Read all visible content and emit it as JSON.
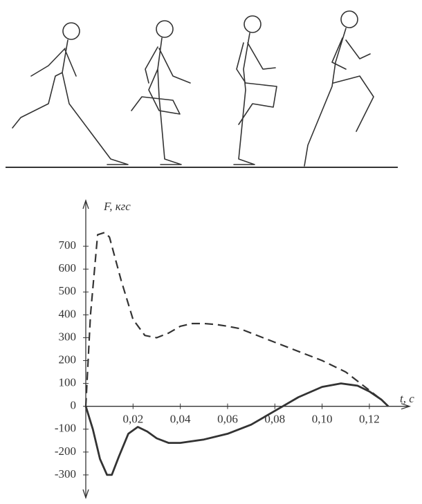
{
  "chart_data": {
    "type": "line",
    "y_label": "F, кгс",
    "x_label": "t, с",
    "xlim": [
      0,
      0.137
    ],
    "ylim": [
      -400,
      900
    ],
    "xticks": [
      {
        "value": 0.02,
        "label": "0,02"
      },
      {
        "value": 0.04,
        "label": "0,04"
      },
      {
        "value": 0.06,
        "label": "0,06"
      },
      {
        "value": 0.08,
        "label": "0,08"
      },
      {
        "value": 0.1,
        "label": "0,10"
      },
      {
        "value": 0.12,
        "label": "0,12"
      }
    ],
    "yticks": [
      -300,
      -200,
      -100,
      0,
      100,
      200,
      300,
      400,
      500,
      600,
      700
    ],
    "series": [
      {
        "color": "#333333",
        "dash": true,
        "x": [
          0,
          0.002,
          0.005,
          0.008,
          0.01,
          0.015,
          0.02,
          0.025,
          0.03,
          0.035,
          0.04,
          0.045,
          0.05,
          0.055,
          0.06,
          0.065,
          0.07,
          0.08,
          0.09,
          0.1,
          0.11,
          0.12,
          0.125,
          0.128
        ],
        "values": [
          0,
          400,
          750,
          760,
          740,
          550,
          380,
          310,
          300,
          320,
          350,
          362,
          362,
          358,
          350,
          340,
          320,
          280,
          240,
          200,
          150,
          70,
          30,
          0
        ]
      },
      {
        "color": "#333333",
        "dash": false,
        "x": [
          0,
          0.003,
          0.006,
          0.009,
          0.011,
          0.014,
          0.018,
          0.022,
          0.026,
          0.03,
          0.035,
          0.04,
          0.05,
          0.06,
          0.07,
          0.08,
          0.09,
          0.1,
          0.108,
          0.115,
          0.12,
          0.125,
          0.128
        ],
        "values": [
          0,
          -100,
          -230,
          -300,
          -300,
          -220,
          -120,
          -90,
          -110,
          -140,
          -160,
          -160,
          -145,
          -120,
          -80,
          -20,
          40,
          85,
          100,
          90,
          65,
          30,
          0
        ]
      }
    ]
  }
}
